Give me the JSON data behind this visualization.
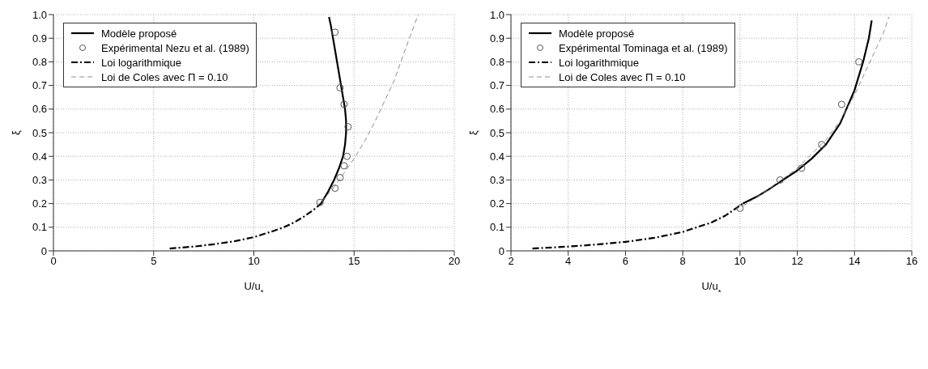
{
  "chart_data": [
    {
      "type": "line",
      "xlabel": "U/u$_{*}$",
      "ylabel": "ξ",
      "xlim": [
        0,
        20
      ],
      "xticks": [
        0,
        5,
        10,
        15,
        20
      ],
      "ylim": [
        0,
        1
      ],
      "yticks": [
        0,
        0.1,
        0.2,
        0.3,
        0.4,
        0.5,
        0.6,
        0.7,
        0.8,
        0.9,
        {
          "value": 1,
          "label": "1.0"
        }
      ],
      "grid": true,
      "legend": "top left",
      "series": [
        {
          "name": "Modèle proposé",
          "type": "line",
          "color": "#000000",
          "line_style": "solid",
          "marker": "none",
          "x": [
            13.35,
            13.7,
            14.0,
            14.25,
            14.45,
            14.55,
            14.6,
            14.6,
            14.55,
            14.45,
            14.35,
            14.25,
            14.15,
            14.05,
            13.95,
            13.85,
            13.75
          ],
          "values": [
            0.2,
            0.25,
            0.3,
            0.35,
            0.4,
            0.45,
            0.5,
            0.55,
            0.6,
            0.65,
            0.7,
            0.75,
            0.8,
            0.85,
            0.9,
            0.95,
            0.99
          ]
        },
        {
          "name": "Expérimental Nezu et al. (1989)",
          "type": "scatter",
          "color": "#555555",
          "marker": "circle",
          "x": [
            13.3,
            14.05,
            14.3,
            14.5,
            14.65,
            14.7,
            14.5,
            14.3,
            14.05
          ],
          "values": [
            0.205,
            0.265,
            0.31,
            0.36,
            0.4,
            0.525,
            0.62,
            0.69,
            0.925
          ]
        },
        {
          "name": "Loi logarithmique",
          "type": "line",
          "color": "#000000",
          "line_style": "dashdot",
          "marker": "none",
          "x": [
            5.8,
            7,
            8,
            9,
            10,
            11,
            11.5,
            12,
            12.5,
            13,
            13.35
          ],
          "values": [
            0.01,
            0.018,
            0.028,
            0.04,
            0.058,
            0.085,
            0.1,
            0.12,
            0.145,
            0.175,
            0.2
          ]
        },
        {
          "name": "Loi de Coles avec Π = 0.10",
          "type": "line",
          "color": "#808080",
          "line_style": "dashed",
          "marker": "none",
          "x": [
            13.4,
            14,
            14.5,
            15,
            15.5,
            16,
            16.5,
            17,
            17.5,
            18.2
          ],
          "values": [
            0.21,
            0.27,
            0.33,
            0.39,
            0.46,
            0.54,
            0.63,
            0.72,
            0.84,
            1.0
          ]
        }
      ]
    },
    {
      "type": "line",
      "xlabel": "U/u$_{*}$",
      "ylabel": "ξ",
      "xlim": [
        2,
        16
      ],
      "xticks": [
        2,
        4,
        6,
        8,
        10,
        12,
        14,
        16
      ],
      "ylim": [
        0,
        1
      ],
      "yticks": [
        0,
        0.1,
        0.2,
        0.3,
        0.4,
        0.5,
        0.6,
        0.7,
        0.8,
        0.9,
        {
          "value": 1,
          "label": "1.0"
        }
      ],
      "grid": true,
      "legend": "top left",
      "series": [
        {
          "name": "Modèle proposé",
          "type": "line",
          "color": "#000000",
          "line_style": "solid",
          "marker": "none",
          "x": [
            10.1,
            10.6,
            11,
            11.5,
            12,
            12.5,
            13,
            13.5,
            14,
            14.3,
            14.5,
            14.6
          ],
          "values": [
            0.2,
            0.23,
            0.26,
            0.3,
            0.34,
            0.39,
            0.45,
            0.54,
            0.68,
            0.8,
            0.9,
            0.975
          ]
        },
        {
          "name": "Expérimental Tominaga et al. (1989)",
          "type": "scatter",
          "color": "#555555",
          "marker": "circle",
          "x": [
            10,
            11.4,
            12.15,
            12.85,
            13.55,
            14.15
          ],
          "values": [
            0.18,
            0.3,
            0.35,
            0.45,
            0.62,
            0.8
          ]
        },
        {
          "name": "Loi logarithmique",
          "type": "line",
          "color": "#000000",
          "line_style": "dashdot",
          "marker": "none",
          "x": [
            2.75,
            4,
            5,
            6,
            7,
            8,
            8.5,
            9,
            9.5,
            10.1
          ],
          "values": [
            0.01,
            0.018,
            0.027,
            0.038,
            0.055,
            0.08,
            0.1,
            0.12,
            0.15,
            0.2
          ]
        },
        {
          "name": "Loi de Coles avec Π = 0.10",
          "type": "line",
          "color": "#808080",
          "line_style": "dashed",
          "marker": "none",
          "x": [
            10.1,
            11,
            12,
            13,
            13.5,
            14,
            14.5,
            15,
            15.2
          ],
          "values": [
            0.19,
            0.26,
            0.35,
            0.47,
            0.55,
            0.66,
            0.79,
            0.92,
            0.99
          ]
        }
      ]
    }
  ]
}
